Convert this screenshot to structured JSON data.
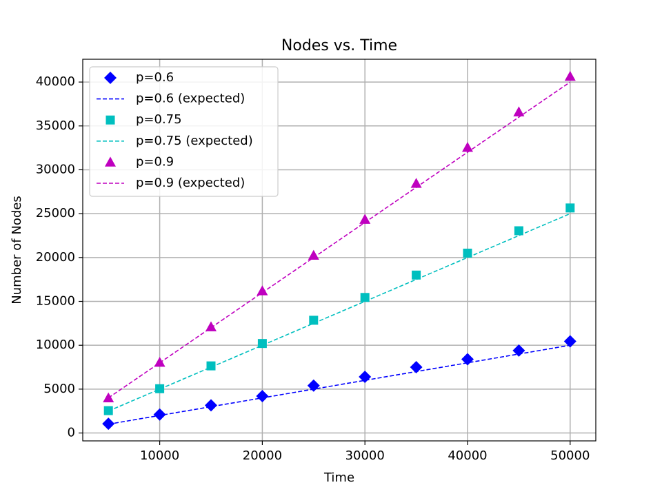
{
  "chart_data": {
    "type": "scatter",
    "title": "Nodes vs. Time",
    "xlabel": "Time",
    "ylabel": "Number of Nodes",
    "xlim": [
      2500,
      52500
    ],
    "ylim": [
      -900,
      42600
    ],
    "x_ticks": [
      10000,
      20000,
      30000,
      40000,
      50000
    ],
    "y_ticks": [
      0,
      5000,
      10000,
      15000,
      20000,
      25000,
      30000,
      35000,
      40000
    ],
    "grid": true,
    "legend_position": "top-left",
    "x": [
      5000,
      10000,
      15000,
      20000,
      25000,
      30000,
      35000,
      40000,
      45000,
      50000
    ],
    "series": [
      {
        "name": "p=0.6",
        "kind": "markers",
        "marker": "diamond",
        "color": "#0000ff",
        "values": [
          1050,
          2100,
          3150,
          4200,
          5400,
          6400,
          7500,
          8400,
          9400,
          10450
        ]
      },
      {
        "name": "p=0.6 (expected)",
        "kind": "dashed-line",
        "color": "#0000ff",
        "values": [
          1000,
          2000,
          3000,
          4000,
          5000,
          6000,
          7000,
          8000,
          9000,
          10000
        ]
      },
      {
        "name": "p=0.75",
        "kind": "markers",
        "marker": "square",
        "color": "#00bfbf",
        "values": [
          2550,
          5050,
          7650,
          10200,
          12850,
          15450,
          18000,
          20500,
          23050,
          25650
        ]
      },
      {
        "name": "p=0.75 (expected)",
        "kind": "dashed-line",
        "color": "#00bfbf",
        "values": [
          2500,
          5000,
          7500,
          10000,
          12500,
          15000,
          17500,
          20000,
          22500,
          25000
        ]
      },
      {
        "name": "p=0.9",
        "kind": "markers",
        "marker": "triangle",
        "color": "#bf00bf",
        "values": [
          4000,
          8050,
          12100,
          16200,
          20250,
          24350,
          28450,
          32550,
          36600,
          40650
        ]
      },
      {
        "name": "p=0.9 (expected)",
        "kind": "dashed-line",
        "color": "#bf00bf",
        "values": [
          4000,
          8000,
          12000,
          16000,
          20000,
          24000,
          28000,
          32000,
          36000,
          40000
        ]
      }
    ]
  }
}
